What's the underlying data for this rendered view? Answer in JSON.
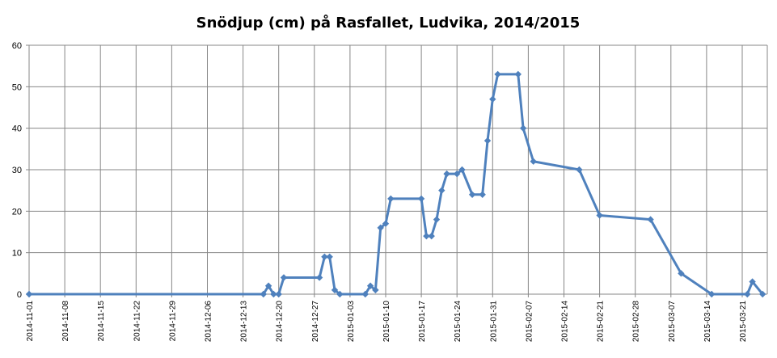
{
  "chart_data": {
    "type": "line",
    "title": "Snödjup (cm) på Rasfallet, Ludvika, 2014/2015",
    "xlabel": "",
    "ylabel": "",
    "ylim": [
      0,
      60
    ],
    "xlim": [
      "2014-11-01",
      "2015-03-24"
    ],
    "yticks": [
      0,
      10,
      20,
      30,
      40,
      50,
      60
    ],
    "xticks": [
      "2014-11-01",
      "2014-11-08",
      "2014-11-15",
      "2014-11-22",
      "2014-11-29",
      "2014-12-06",
      "2014-12-13",
      "2014-12-20",
      "2014-12-27",
      "2015-01-03",
      "2015-01-10",
      "2015-01-17",
      "2015-01-24",
      "2015-01-31",
      "2015-02-07",
      "2015-02-14",
      "2015-02-21",
      "2015-02-28",
      "2015-03-07",
      "2015-03-14",
      "2015-03-21"
    ],
    "grid": true,
    "legend": "none",
    "series_color": "#4f81bd",
    "series": [
      {
        "points": [
          [
            "2014-11-01",
            0
          ],
          [
            "2014-12-17",
            0
          ],
          [
            "2014-12-18",
            2
          ],
          [
            "2014-12-19",
            0
          ],
          [
            "2014-12-20",
            0
          ],
          [
            "2014-12-21",
            4
          ],
          [
            "2014-12-28",
            4
          ],
          [
            "2014-12-29",
            9
          ],
          [
            "2014-12-30",
            9
          ],
          [
            "2014-12-31",
            1
          ],
          [
            "2015-01-01",
            0
          ],
          [
            "2015-01-06",
            0
          ],
          [
            "2015-01-07",
            2
          ],
          [
            "2015-01-08",
            1
          ],
          [
            "2015-01-09",
            16
          ],
          [
            "2015-01-10",
            17
          ],
          [
            "2015-01-11",
            23
          ],
          [
            "2015-01-17",
            23
          ],
          [
            "2015-01-18",
            14
          ],
          [
            "2015-01-19",
            14
          ],
          [
            "2015-01-20",
            18
          ],
          [
            "2015-01-21",
            25
          ],
          [
            "2015-01-22",
            29
          ],
          [
            "2015-01-24",
            29
          ],
          [
            "2015-01-25",
            30
          ],
          [
            "2015-01-27",
            24
          ],
          [
            "2015-01-29",
            24
          ],
          [
            "2015-01-30",
            37
          ],
          [
            "2015-01-31",
            47
          ],
          [
            "2015-02-01",
            53
          ],
          [
            "2015-02-05",
            53
          ],
          [
            "2015-02-06",
            40
          ],
          [
            "2015-02-08",
            32
          ],
          [
            "2015-02-17",
            30
          ],
          [
            "2015-02-21",
            19
          ],
          [
            "2015-03-03",
            18
          ],
          [
            "2015-03-09",
            5
          ],
          [
            "2015-03-15",
            0
          ],
          [
            "2015-03-22",
            0
          ],
          [
            "2015-03-23",
            3
          ],
          [
            "2015-03-25",
            0
          ]
        ]
      }
    ]
  }
}
